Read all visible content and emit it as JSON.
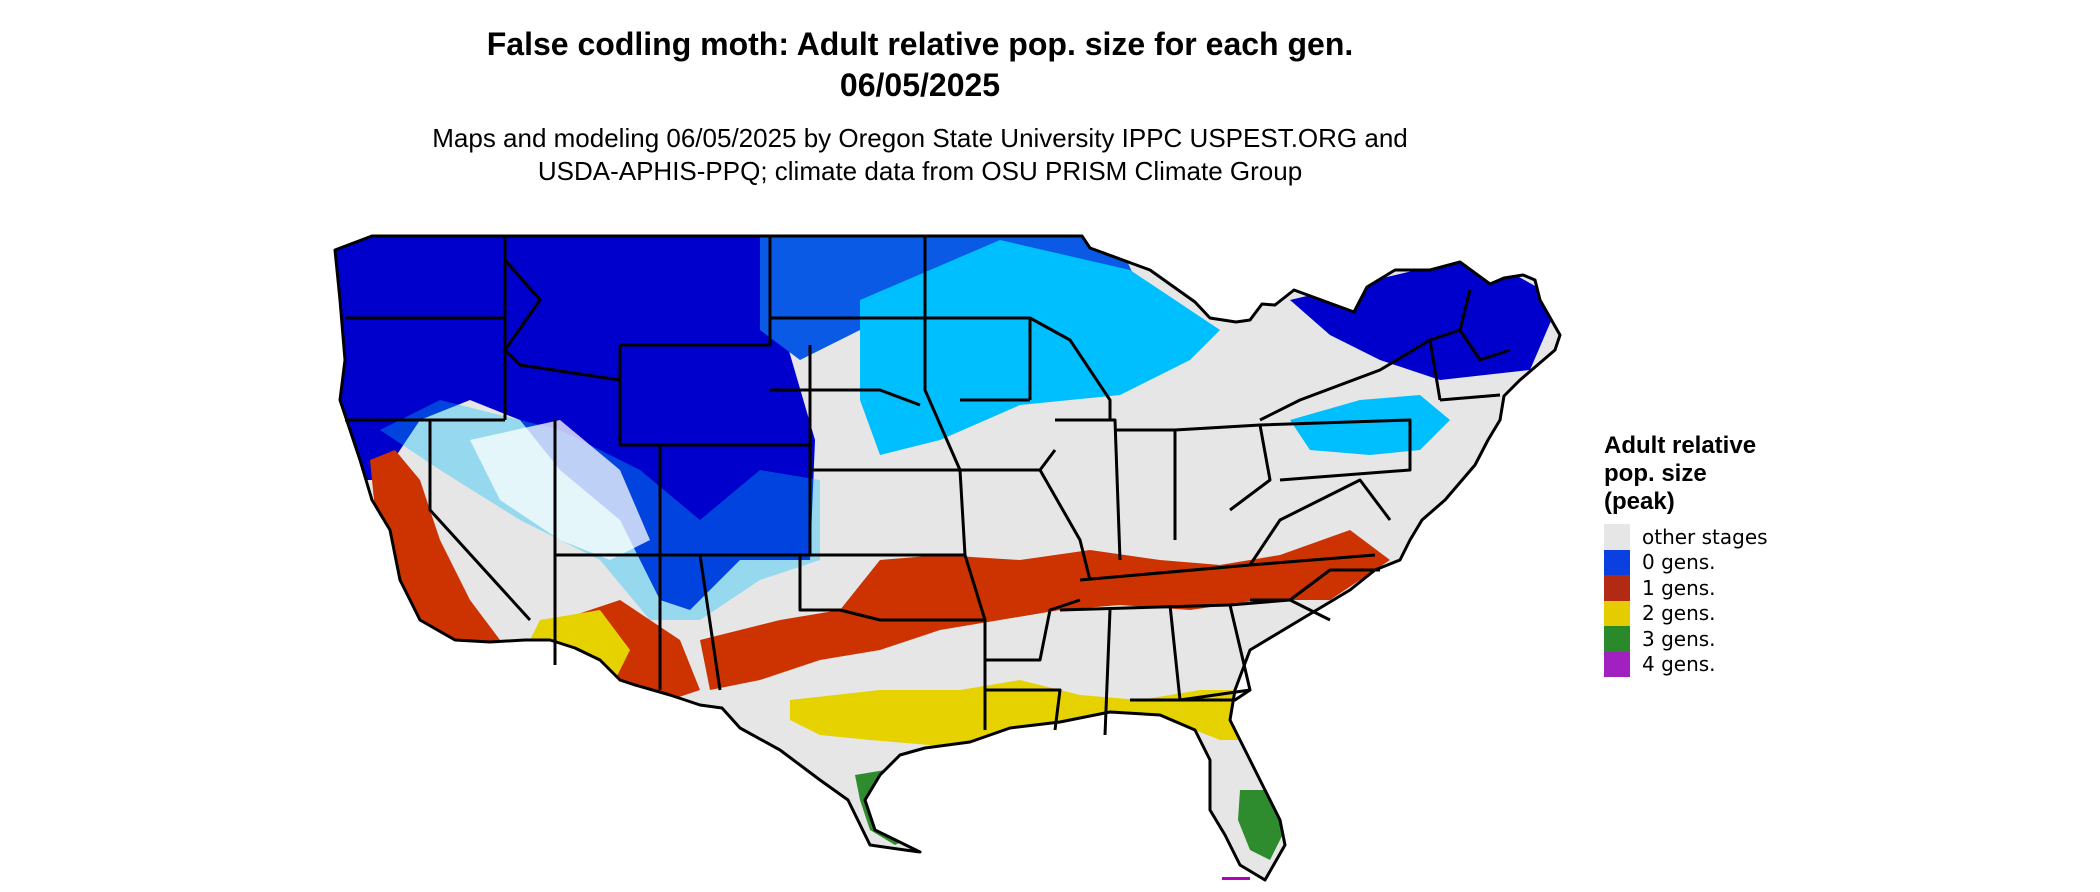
{
  "title_line1": "False codling moth: Adult relative pop. size for each gen.",
  "title_line2": "06/05/2025",
  "subtitle_line1": "Maps and modeling 06/05/2025 by Oregon State University IPPC USPEST.ORG and",
  "subtitle_line2": "USDA-APHIS-PPQ; climate data from OSU PRISM Climate Group",
  "legend": {
    "title_line1": "Adult relative",
    "title_line2": "pop. size",
    "title_line3": "(peak)",
    "items": [
      {
        "label": "other stages",
        "color": "#e6e6e6"
      },
      {
        "label": "0 gens.",
        "color": "#0a3fe0"
      },
      {
        "label": "1 gens.",
        "color": "#b22a14"
      },
      {
        "label": "2 gens.",
        "color": "#e5cc00"
      },
      {
        "label": "3 gens.",
        "color": "#2a8a2a"
      },
      {
        "label": "4 gens.",
        "color": "#a020c0"
      }
    ]
  },
  "colors": {
    "other_stages": "#e6e6e6",
    "gen0_dark": "#0000cd",
    "gen0_mid": "#0a5ae6",
    "gen0_light": "#00bfff",
    "gen1": "#cc3300",
    "gen2": "#e6d200",
    "gen3": "#2e8b2e",
    "gen4": "#b000c0",
    "state_border": "#000000"
  }
}
